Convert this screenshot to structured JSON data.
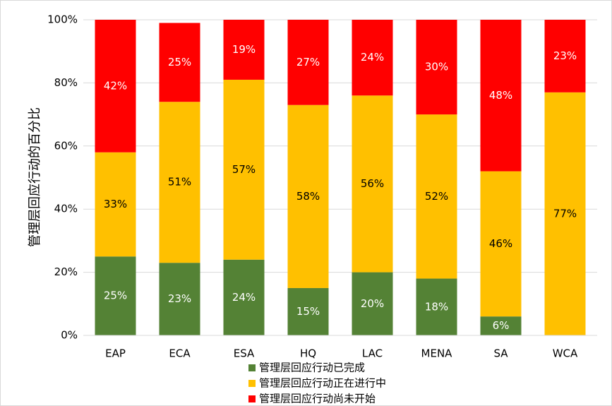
{
  "chart_data": {
    "type": "bar",
    "stacked": true,
    "y_label": "管理层回应行动的百分比",
    "categories": [
      "EAP",
      "ECA",
      "ESA",
      "HQ",
      "LAC",
      "MENA",
      "SA",
      "WCA"
    ],
    "series": [
      {
        "name": "管理层回应行动已完成",
        "color": "#548235",
        "label_color": "#ffffff",
        "values": [
          25,
          23,
          24,
          15,
          20,
          18,
          6,
          null
        ],
        "value_labels": [
          "25%",
          "23%",
          "24%",
          "15%",
          "20%",
          "18%",
          "6%",
          null
        ]
      },
      {
        "name": "管理层回应行动正在进行中",
        "color": "#ffc000",
        "label_color": "#000000",
        "values": [
          33,
          51,
          57,
          58,
          56,
          52,
          46,
          77
        ],
        "value_labels": [
          "33%",
          "51%",
          "57%",
          "58%",
          "56%",
          "52%",
          "46%",
          "77%"
        ]
      },
      {
        "name": "管理层回应行动尚未开始",
        "color": "#ff0000",
        "label_color": "#ffffff",
        "values": [
          42,
          25,
          19,
          27,
          24,
          30,
          48,
          23
        ],
        "value_labels": [
          "42%",
          "25%",
          "19%",
          "27%",
          "24%",
          "30%",
          "48%",
          "23%"
        ]
      }
    ],
    "ylim": [
      0,
      100
    ],
    "yticks": [
      {
        "value": 0,
        "label": "0%"
      },
      {
        "value": 20,
        "label": "20%"
      },
      {
        "value": 40,
        "label": "40%"
      },
      {
        "value": 60,
        "label": "60%"
      },
      {
        "value": 80,
        "label": "80%"
      },
      {
        "value": 100,
        "label": "100%"
      }
    ],
    "grid": true
  }
}
